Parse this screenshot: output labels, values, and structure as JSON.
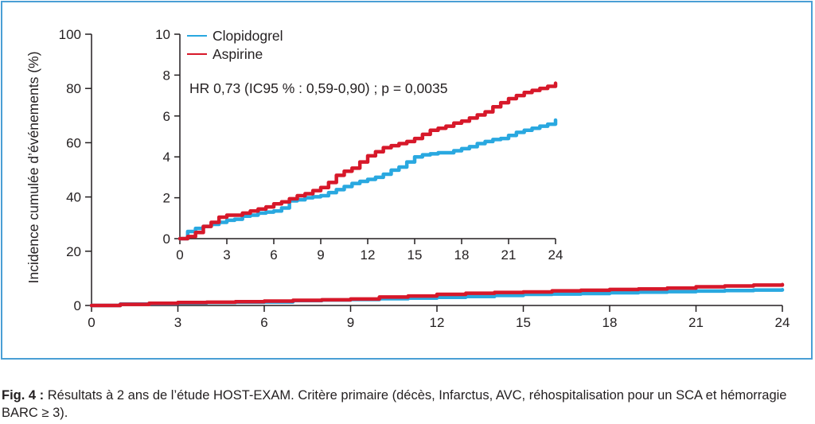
{
  "caption": {
    "label": "Fig. 4 :",
    "text": "Résultats à 2 ans de l’étude HOST-EXAM. Critère primaire (décès, Infarctus, AVC, réhospitalisation pour un SCA et hémorragie BARC ≥ 3)."
  },
  "colors": {
    "clopidogrel": "#29a8e0",
    "aspirine": "#d7182a",
    "frame": "#4a9fd5",
    "axis": "#231f20"
  },
  "chart_data": [
    {
      "type": "line",
      "title": "",
      "xlabel": "",
      "ylabel": "Incidence cumulée d’événements (%)",
      "xlim": [
        0,
        24
      ],
      "ylim": [
        0,
        100
      ],
      "xticks": [
        0,
        3,
        6,
        9,
        12,
        15,
        18,
        21,
        24
      ],
      "yticks": [
        0,
        20,
        40,
        60,
        80,
        100
      ],
      "x_tick_labels": [
        "0",
        "3",
        "6",
        "9",
        "12",
        "15",
        "18",
        "21",
        "24"
      ],
      "y_tick_labels": [
        "0",
        "20",
        "40",
        "60",
        "80",
        "100"
      ],
      "grid": false,
      "series": [
        {
          "name": "Clopidogrel",
          "color": "#29a8e0",
          "x": [
            0,
            1,
            2,
            3,
            4,
            5,
            6,
            7,
            8,
            9,
            10,
            11,
            12,
            13,
            14,
            15,
            16,
            17,
            18,
            19,
            20,
            21,
            22,
            23,
            24
          ],
          "y": [
            0,
            0.5,
            0.7,
            0.9,
            1.1,
            1.2,
            1.3,
            1.8,
            2.0,
            2.2,
            2.5,
            2.7,
            3.0,
            3.3,
            3.7,
            4.1,
            4.2,
            4.4,
            4.7,
            4.9,
            5.1,
            5.3,
            5.5,
            5.7,
            5.8
          ]
        },
        {
          "name": "Aspirine",
          "color": "#d7182a",
          "x": [
            0,
            1,
            2,
            3,
            4,
            5,
            6,
            7,
            8,
            9,
            10,
            11,
            12,
            13,
            14,
            15,
            16,
            17,
            18,
            19,
            20,
            21,
            22,
            23,
            24
          ],
          "y": [
            0,
            0.4,
            0.8,
            1.1,
            1.2,
            1.4,
            1.6,
            1.9,
            2.1,
            2.4,
            3.1,
            3.5,
            4.1,
            4.5,
            4.8,
            5.0,
            5.4,
            5.6,
            5.9,
            6.1,
            6.4,
            6.9,
            7.2,
            7.5,
            7.7
          ]
        }
      ]
    },
    {
      "type": "line",
      "title": "",
      "xlabel": "",
      "ylabel": "",
      "xlim": [
        0,
        24
      ],
      "ylim": [
        0,
        10
      ],
      "xticks": [
        0,
        3,
        6,
        9,
        12,
        15,
        18,
        21,
        24
      ],
      "yticks": [
        0,
        2,
        4,
        6,
        8,
        10
      ],
      "x_tick_labels": [
        "0",
        "3",
        "6",
        "9",
        "12",
        "15",
        "18",
        "21",
        "24"
      ],
      "y_tick_labels": [
        "0",
        "2",
        "4",
        "6",
        "8",
        "10"
      ],
      "grid": false,
      "legend": {
        "placement": "top-left",
        "entries": [
          "Clopidogrel",
          "Aspirine"
        ]
      },
      "annotation": "HR 0,73 (IC95 % : 0,59-0,90) ; p = 0,0035",
      "series": [
        {
          "name": "Clopidogrel",
          "color": "#29a8e0",
          "x": [
            0,
            0.5,
            1,
            1.5,
            2,
            2.5,
            3,
            3.5,
            4,
            4.5,
            5,
            5.5,
            6,
            6.5,
            7,
            7.5,
            8,
            8.5,
            9,
            9.5,
            10,
            10.5,
            11,
            11.5,
            12,
            12.5,
            13,
            13.5,
            14,
            14.5,
            15,
            15.5,
            16,
            16.5,
            17,
            17.5,
            18,
            18.5,
            19,
            19.5,
            20,
            20.5,
            21,
            21.5,
            22,
            22.5,
            23,
            23.5,
            24
          ],
          "y": [
            0,
            0.35,
            0.5,
            0.6,
            0.7,
            0.8,
            0.9,
            0.95,
            1.1,
            1.15,
            1.25,
            1.3,
            1.35,
            1.5,
            1.85,
            1.9,
            2.0,
            2.05,
            2.1,
            2.25,
            2.4,
            2.55,
            2.7,
            2.8,
            2.9,
            3.0,
            3.15,
            3.35,
            3.5,
            3.75,
            4.0,
            4.1,
            4.15,
            4.2,
            4.2,
            4.3,
            4.4,
            4.5,
            4.65,
            4.75,
            4.85,
            4.9,
            5.05,
            5.2,
            5.3,
            5.4,
            5.5,
            5.6,
            5.8
          ]
        },
        {
          "name": "Aspirine",
          "color": "#d7182a",
          "x": [
            0,
            0.5,
            1,
            1.5,
            2,
            2.5,
            3,
            3.5,
            4,
            4.5,
            5,
            5.5,
            6,
            6.5,
            7,
            7.5,
            8,
            8.5,
            9,
            9.5,
            10,
            10.5,
            11,
            11.5,
            12,
            12.5,
            13,
            13.5,
            14,
            14.5,
            15,
            15.5,
            16,
            16.5,
            17,
            17.5,
            18,
            18.5,
            19,
            19.5,
            20,
            20.5,
            21,
            21.5,
            22,
            22.5,
            23,
            23.5,
            24
          ],
          "y": [
            0,
            0.1,
            0.3,
            0.6,
            0.8,
            1.05,
            1.15,
            1.15,
            1.25,
            1.35,
            1.45,
            1.55,
            1.7,
            1.8,
            1.95,
            2.1,
            2.2,
            2.35,
            2.5,
            2.75,
            3.1,
            3.3,
            3.45,
            3.75,
            4.05,
            4.25,
            4.45,
            4.55,
            4.65,
            4.75,
            4.9,
            5.1,
            5.3,
            5.4,
            5.5,
            5.65,
            5.75,
            5.9,
            6.05,
            6.2,
            6.45,
            6.65,
            6.85,
            7.0,
            7.15,
            7.25,
            7.35,
            7.45,
            7.6
          ]
        }
      ]
    }
  ]
}
